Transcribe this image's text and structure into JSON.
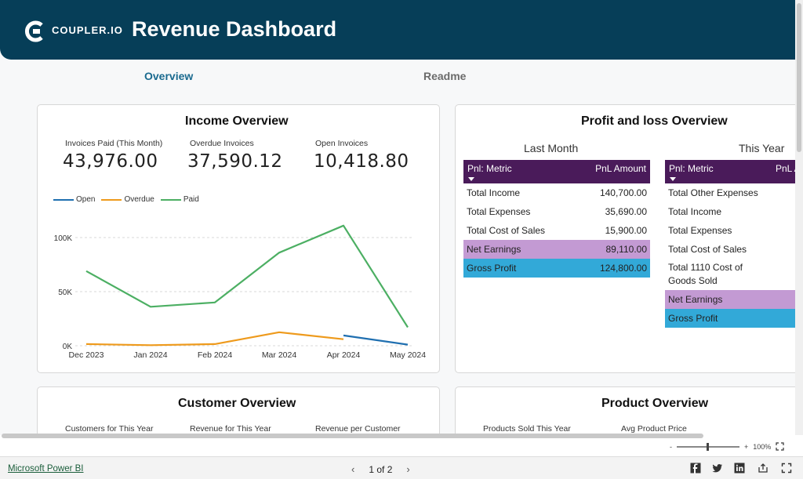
{
  "header": {
    "logo_text": "COUPLER.IO",
    "title": "Revenue Dashboard"
  },
  "tabs": [
    {
      "label": "Overview",
      "active": true
    },
    {
      "label": "Readme",
      "active": false
    }
  ],
  "income": {
    "title": "Income Overview",
    "kpis": [
      {
        "label": "Invoices Paid (This Month)",
        "value": "43,976.00"
      },
      {
        "label": "Overdue Invoices",
        "value": "37,590.12"
      },
      {
        "label": "Open Invoices",
        "value": "10,418.80"
      }
    ],
    "legend": [
      {
        "name": "Open",
        "color": "#1f6fb0"
      },
      {
        "name": "Overdue",
        "color": "#ee9a1c"
      },
      {
        "name": "Paid",
        "color": "#4caf63"
      }
    ]
  },
  "chart_data": {
    "type": "line",
    "categories": [
      "Dec 2023",
      "Jan 2024",
      "Feb 2024",
      "Mar 2024",
      "Apr 2024",
      "May 2024"
    ],
    "y_ticks": [
      "0K",
      "50K",
      "100K"
    ],
    "ylim": [
      0,
      120000
    ],
    "grid": true,
    "legend_position": "top-left",
    "series": [
      {
        "name": "Paid",
        "color": "#4caf63",
        "values": [
          69000,
          36000,
          40000,
          86000,
          111000,
          17000
        ]
      },
      {
        "name": "Overdue",
        "color": "#ee9a1c",
        "values": [
          1500,
          500,
          1500,
          12500,
          6000,
          null
        ]
      },
      {
        "name": "Open",
        "color": "#1f6fb0",
        "values": [
          null,
          null,
          null,
          null,
          9500,
          1000
        ]
      }
    ]
  },
  "pl": {
    "title": "Profit and loss Overview",
    "last_month": {
      "subtitle": "Last Month",
      "col1": "Pnl: Metric",
      "col2": "PnL Amount",
      "rows": [
        {
          "metric": "Total Income",
          "amount": "140,700.00"
        },
        {
          "metric": "Total Expenses",
          "amount": "35,690.00"
        },
        {
          "metric": "Total Cost of Sales",
          "amount": "15,900.00"
        },
        {
          "metric": "Net Earnings",
          "amount": "89,110.00"
        },
        {
          "metric": "Gross Profit",
          "amount": "124,800.00"
        }
      ]
    },
    "this_year": {
      "subtitle": "This Year",
      "col1": "Pnl: Metric",
      "col2": "PnL A",
      "rows": [
        {
          "metric": "Total Other Expenses"
        },
        {
          "metric": "Total Income"
        },
        {
          "metric": "Total Expenses"
        },
        {
          "metric": "Total Cost of Sales"
        },
        {
          "metric": "Total 1110 Cost of Goods Sold"
        },
        {
          "metric": "Net Earnings"
        },
        {
          "metric": "Gross Profit"
        }
      ]
    }
  },
  "customer": {
    "title": "Customer Overview",
    "kpis": [
      {
        "label": "Customers for This Year"
      },
      {
        "label": "Revenue for This Year"
      },
      {
        "label": "Revenue per Customer"
      }
    ]
  },
  "product": {
    "title": "Product Overview",
    "kpis": [
      {
        "label": "Products Sold This Year"
      },
      {
        "label": "Avg Product Price"
      }
    ]
  },
  "statusbar": {
    "zoom_minus": "-",
    "zoom_plus": "+",
    "zoom_level": "100%"
  },
  "footer": {
    "brand": "Microsoft Power BI",
    "page": "1 of 2",
    "prev": "‹",
    "next": "›"
  }
}
